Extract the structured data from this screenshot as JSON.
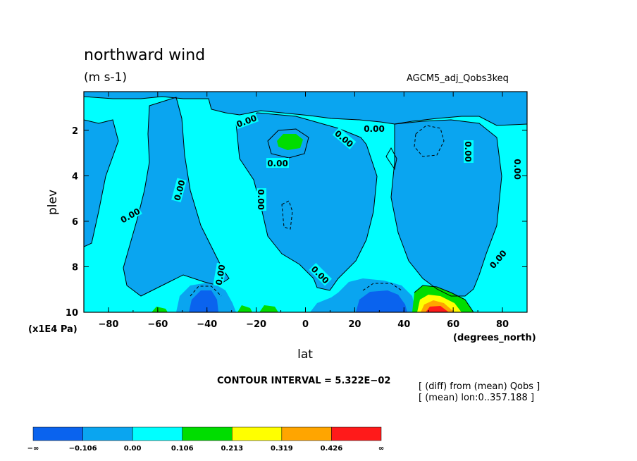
{
  "chart_data": {
    "type": "contour",
    "title": "northward wind",
    "units": "(m s-1)",
    "run_label": "AGCM5_adj_Qobs3keq",
    "xlabel": "lat",
    "x_units": "(degrees_north)",
    "ylabel": "plev",
    "y_units": "(x1E4 Pa)",
    "xlim": [
      -90,
      90
    ],
    "ylim": [
      0.3,
      10
    ],
    "y_inverted": true,
    "x_ticks": [
      -80,
      -60,
      -40,
      -20,
      0,
      20,
      40,
      60,
      80
    ],
    "x_tick_labels": [
      "−80",
      "−60",
      "−40",
      "−20",
      "0",
      "20",
      "40",
      "60",
      "80"
    ],
    "y_ticks": [
      2,
      4,
      6,
      8,
      10
    ],
    "y_tick_labels": [
      "2",
      "4",
      "6",
      "8",
      "10"
    ],
    "contour_interval_text": "CONTOUR INTERVAL = 5.322E−02",
    "annotation_lines": [
      "[ (diff) from (mean) Qobs ]",
      "[ (mean) lon:0..357.188 ]"
    ],
    "contour_label": "0.00",
    "colorbar": {
      "colors": [
        "#0a63ee",
        "#0aa5f0",
        "#00ffff",
        "#00dd00",
        "#ffff00",
        "#ffa500",
        "#ff1a1a"
      ],
      "labels": [
        "−∞",
        "−0.106",
        "0.00",
        "0.106",
        "0.213",
        "0.319",
        "0.426",
        "∞"
      ]
    },
    "background_color": "#00ffff"
  }
}
